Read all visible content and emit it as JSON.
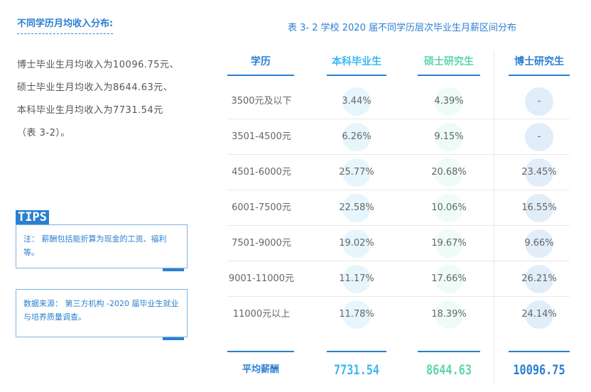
{
  "section": {
    "title": "不同学历月均收入分布:",
    "lines": [
      "博士毕业生月均收入为10096.75元、",
      "硕士毕业生月均收入为8644.63元、",
      "本科毕业生月均收入为7731.54元",
      "（表 3-2）。"
    ]
  },
  "tips": {
    "logo": "TIPS",
    "note": "注： 薪酬包括能折算为现金的工资、福利等。",
    "source": "数据来源： 第三方机构 -2020 届毕业生就业与培养质量调查。"
  },
  "table": {
    "caption": "表 3- 2  学校 2020 届不同学历层次毕业生月薪区间分布",
    "headers": [
      "学历",
      "本科毕业生",
      "硕士研究生",
      "博士研究生"
    ],
    "rows": [
      {
        "range": "3500元及以下",
        "bk": "3.44%",
        "ss": "4.39%",
        "bs": "-"
      },
      {
        "range": "3501-4500元",
        "bk": "6.26%",
        "ss": "9.15%",
        "bs": "-"
      },
      {
        "range": "4501-6000元",
        "bk": "25.77%",
        "ss": "20.68%",
        "bs": "23.45%"
      },
      {
        "range": "6001-7500元",
        "bk": "22.58%",
        "ss": "10.06%",
        "bs": "16.55%"
      },
      {
        "range": "7501-9000元",
        "bk": "19.02%",
        "ss": "19.67%",
        "bs": "9.66%"
      },
      {
        "range": "9001-11000元",
        "bk": "11.17%",
        "ss": "17.66%",
        "bs": "26.21%"
      },
      {
        "range": "11000元以上",
        "bk": "11.78%",
        "ss": "18.39%",
        "bs": "24.14%"
      }
    ],
    "avg": {
      "label": "平均薪酬",
      "bk": "7731.54",
      "ss": "8644.63",
      "bs": "10096.75"
    }
  },
  "colors": {
    "primary": "#2b7fd0",
    "bachelor": "#3db7f0",
    "master": "#5cd6a8",
    "doctor": "#2b7fd0"
  }
}
